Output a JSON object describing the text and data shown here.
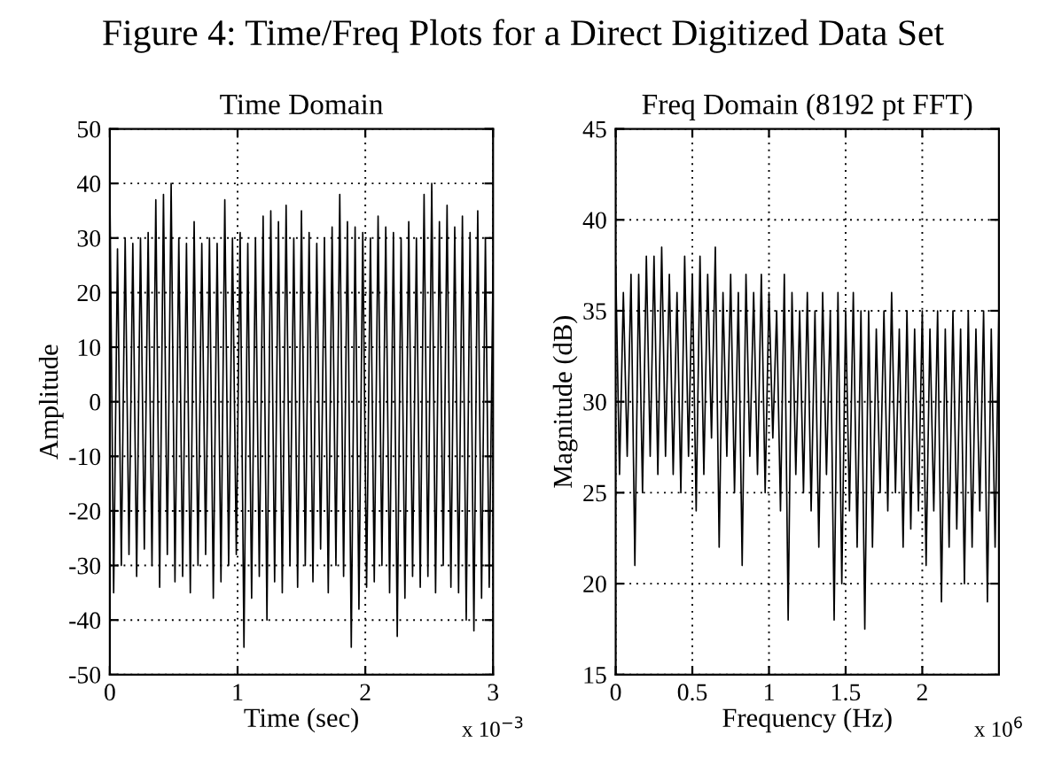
{
  "chart_data": [
    {
      "type": "line",
      "title": "Time Domain",
      "xlabel": "Time (sec)",
      "ylabel": "Amplitude",
      "annotations": [
        "Figure 4: Time/Freq Plots for a Direct Digitized Data Set",
        "x 10$^{−3}$"
      ],
      "x": [
        0,
        0.03,
        0.06,
        0.09,
        0.12,
        0.15,
        0.18,
        0.21,
        0.24,
        0.27,
        0.3,
        0.33,
        0.36,
        0.39,
        0.42,
        0.45,
        0.48,
        0.51,
        0.54,
        0.57,
        0.6,
        0.63,
        0.66,
        0.69,
        0.72,
        0.75,
        0.78,
        0.81,
        0.84,
        0.87,
        0.9,
        0.93,
        0.96,
        0.99,
        1.02,
        1.05,
        1.08,
        1.11,
        1.14,
        1.17,
        1.2,
        1.23,
        1.26,
        1.29,
        1.32,
        1.35,
        1.38,
        1.41,
        1.44,
        1.47,
        1.5,
        1.53,
        1.56,
        1.59,
        1.62,
        1.65,
        1.68,
        1.71,
        1.74,
        1.77,
        1.8,
        1.83,
        1.86,
        1.89,
        1.92,
        1.95,
        1.98,
        2.01,
        2.04,
        2.07,
        2.1,
        2.13,
        2.16,
        2.19,
        2.22,
        2.25,
        2.28,
        2.31,
        2.34,
        2.37,
        2.4,
        2.43,
        2.46,
        2.49,
        2.52,
        2.55,
        2.58,
        2.61,
        2.64,
        2.67,
        2.7,
        2.73,
        2.76,
        2.79,
        2.82,
        2.85,
        2.88,
        2.91,
        2.94,
        2.97,
        3
      ],
      "series": [
        {
          "color": "#000000",
          "values": [
            40,
            -35,
            28,
            -30,
            30,
            -28,
            29,
            -32,
            30,
            -27,
            31,
            -30,
            37,
            -34,
            38,
            -28,
            40,
            -33,
            30,
            -32,
            29,
            -35,
            33,
            -30,
            29,
            -28,
            30,
            -36,
            29,
            -33,
            37,
            -30,
            30,
            -28,
            31,
            -45,
            29,
            -36,
            30,
            -32,
            34,
            -40,
            35,
            -33,
            33,
            -35,
            36,
            -30,
            30,
            -34,
            35,
            -30,
            31,
            -33,
            29,
            -27,
            30,
            -35,
            32,
            -30,
            38,
            -32,
            33,
            -45,
            32,
            -38,
            31,
            -34,
            30,
            -33,
            34,
            -30,
            32,
            -35,
            31,
            -43,
            30,
            -36,
            33,
            -32,
            30,
            -34,
            38,
            -32,
            40,
            -35,
            33,
            -30,
            36,
            -34,
            32,
            -35,
            34,
            -40,
            31,
            -42,
            35,
            -36,
            30,
            -34,
            25
          ]
        }
      ],
      "xlim": [
        0,
        3
      ],
      "ylim": [
        -50,
        50
      ],
      "xticks": [
        0,
        1,
        2,
        3
      ],
      "yticks": [
        -50,
        -40,
        -30,
        -20,
        -10,
        0,
        10,
        20,
        30,
        40,
        50
      ],
      "grid": true,
      "line_style": "solid"
    },
    {
      "type": "line",
      "title": "Freq Domain (8192 pt FFT)",
      "xlabel": "Frequency (Hz)",
      "ylabel": "Magnitude (dB)",
      "annotations": [
        "x 10$^{6}$"
      ],
      "x": [
        0,
        0.025,
        0.05,
        0.075,
        0.1,
        0.125,
        0.15,
        0.175,
        0.2,
        0.225,
        0.25,
        0.275,
        0.3,
        0.325,
        0.35,
        0.375,
        0.4,
        0.425,
        0.45,
        0.475,
        0.5,
        0.525,
        0.55,
        0.575,
        0.6,
        0.625,
        0.65,
        0.675,
        0.7,
        0.725,
        0.75,
        0.775,
        0.8,
        0.825,
        0.85,
        0.875,
        0.9,
        0.925,
        0.95,
        0.975,
        1,
        1.025,
        1.05,
        1.075,
        1.1,
        1.125,
        1.15,
        1.175,
        1.2,
        1.225,
        1.25,
        1.275,
        1.3,
        1.325,
        1.35,
        1.375,
        1.4,
        1.425,
        1.45,
        1.475,
        1.5,
        1.525,
        1.55,
        1.575,
        1.6,
        1.625,
        1.65,
        1.675,
        1.7,
        1.725,
        1.75,
        1.775,
        1.8,
        1.825,
        1.85,
        1.875,
        1.9,
        1.925,
        1.95,
        1.975,
        2,
        2.025,
        2.05,
        2.075,
        2.1,
        2.125,
        2.15,
        2.175,
        2.2,
        2.225,
        2.25,
        2.275,
        2.3,
        2.325,
        2.35,
        2.375,
        2.4,
        2.425,
        2.45,
        2.475,
        2.5
      ],
      "series": [
        {
          "color": "#000000",
          "values": [
            37.5,
            26,
            36,
            27,
            37,
            21,
            37,
            25,
            38,
            27,
            38,
            26,
            38.5,
            27,
            37,
            26,
            36,
            25,
            38,
            27,
            37,
            24,
            38,
            26,
            37,
            28,
            38.5,
            22,
            36,
            27,
            37,
            25,
            36,
            21,
            37,
            27,
            36,
            26,
            37,
            25,
            36,
            28,
            35,
            24,
            37,
            18,
            36,
            26,
            35,
            25,
            36,
            24,
            35,
            22,
            36,
            26,
            35,
            18,
            36,
            20,
            35,
            24,
            36,
            22,
            35,
            17.5,
            35,
            22,
            34,
            25,
            35,
            24,
            36,
            25,
            34,
            22,
            35,
            23,
            34,
            24,
            35,
            21,
            34,
            24,
            35,
            19,
            34,
            22,
            35,
            23,
            34,
            20,
            35,
            22,
            34,
            24,
            35,
            19,
            34,
            22,
            35
          ]
        }
      ],
      "xlim": [
        0,
        2.5
      ],
      "ylim": [
        15,
        45
      ],
      "xticks": [
        0,
        0.5,
        1,
        1.5,
        2
      ],
      "yticks": [
        15,
        20,
        25,
        30,
        35,
        40,
        45
      ],
      "grid": true,
      "line_style": "solid"
    }
  ]
}
